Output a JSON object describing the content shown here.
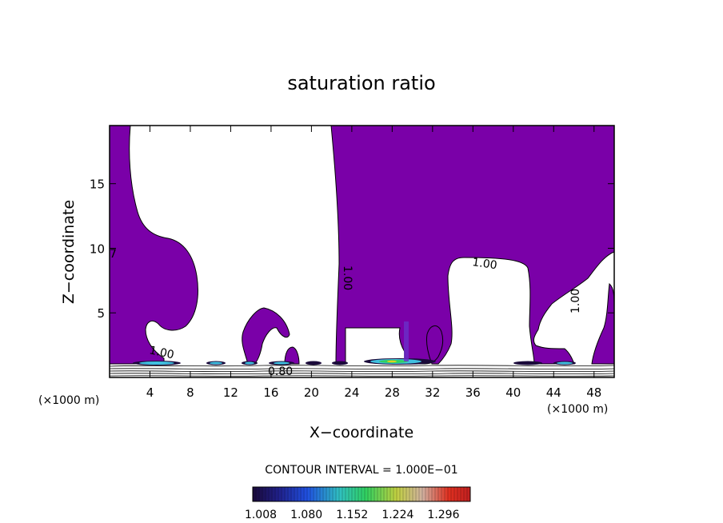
{
  "chart_data": {
    "type": "heatmap",
    "title": "saturation ratio",
    "xlabel": "X−coordinate",
    "ylabel": "Z−coordinate",
    "x_unit_left": "(×1000 m)",
    "x_unit_right": "(×1000 m)",
    "xlim": [
      0,
      50
    ],
    "ylim": [
      0,
      19.5
    ],
    "xticks": [
      4,
      8,
      12,
      16,
      20,
      24,
      28,
      32,
      36,
      40,
      44,
      48
    ],
    "yticks": [
      5,
      10,
      15
    ],
    "xtick_labels": [
      "4",
      "8",
      "12",
      "16",
      "20",
      "24",
      "28",
      "32",
      "36",
      "40",
      "44",
      "48"
    ],
    "ytick_labels": [
      "5",
      "10",
      "15"
    ],
    "contour_labels": [
      {
        "text": "1.00",
        "x": 5.3,
        "z": 2.0
      },
      {
        "text": "1.00",
        "x": 23.3,
        "z": 8.0,
        "rotate": 90
      },
      {
        "text": "1.00",
        "x": 37.4,
        "z": 9.0
      },
      {
        "text": "1.00",
        "x": 45.8,
        "z": 6.0,
        "rotate": -90
      },
      {
        "text": "0.80",
        "x": 17.3,
        "z": 0.4
      },
      {
        "text": "7",
        "x": 0.1,
        "z": 9.8
      }
    ],
    "contour_interval_text": "CONTOUR INTERVAL = 1.000E−01",
    "colorbar": {
      "labels": [
        "1.008",
        "1.080",
        "1.152",
        "1.224",
        "1.296"
      ],
      "range": [
        1.008,
        1.296
      ]
    },
    "colors": {
      "fill": "#7a00a8",
      "contour": "#000000",
      "cb_dark": "#1a0a3a",
      "cb_blue": "#2050e0",
      "cb_green": "#30d060",
      "cb_yellow": "#e0d020",
      "cb_red": "#e03020"
    }
  }
}
